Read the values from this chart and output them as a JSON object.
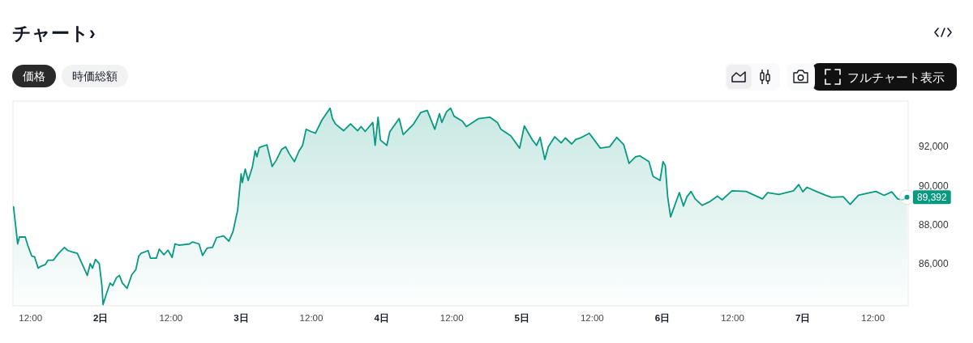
{
  "chart_data": {
    "type": "area",
    "title": "チャート›",
    "x": [
      "--12-01T09:06",
      "--12-01T09:48",
      "--12-01T10:06",
      "--12-01T11:06",
      "--12-01T11:30",
      "--12-01T12:12",
      "--12-01T12:42",
      "--12-01T13:18",
      "--12-01T13:48",
      "--12-01T14:30",
      "--12-01T15:00",
      "--12-01T15:54",
      "--12-01T16:48",
      "--12-01T17:48",
      "--12-01T18:24",
      "--12-01T19:06",
      "--12-01T20:00",
      "--12-01T21:00",
      "--12-01T21:42",
      "--12-01T22:12",
      "--12-01T22:36",
      "--12-01T23:06",
      "--12-01T23:45",
      "--12-02T00:12",
      "--12-02T00:24",
      "--12-02T00:54",
      "--12-02T01:36",
      "--12-02T02:03",
      "--12-02T02:42",
      "--12-02T03:12",
      "--12-02T03:42",
      "--12-02T04:30",
      "--12-02T05:18",
      "--12-02T06:00",
      "--12-02T06:30",
      "--12-02T06:54",
      "--12-02T08:06",
      "--12-02T08:30",
      "--12-02T09:30",
      "--12-02T10:00",
      "--12-02T10:48",
      "--12-02T11:30",
      "--12-02T12:12",
      "--12-02T12:42",
      "--12-02T13:24",
      "--12-02T15:12",
      "--12-02T15:42",
      "--12-02T16:48",
      "--12-02T17:24",
      "--12-02T18:12",
      "--12-02T19:06",
      "--12-02T19:48",
      "--12-02T21:00",
      "--12-02T21:54",
      "--12-02T22:36",
      "--12-02T23:24",
      "--12-03T00:00",
      "--12-03T00:12",
      "--12-03T00:42",
      "--12-03T01:12",
      "--12-03T01:54",
      "--12-03T02:24",
      "--12-03T02:42",
      "--12-03T03:06",
      "--12-03T04:24",
      "--12-03T05:18",
      "--12-03T06:00",
      "--12-03T06:54",
      "--12-03T07:36",
      "--12-03T08:12",
      "--12-03T09:06",
      "--12-03T09:54",
      "--12-03T10:30",
      "--12-03T11:06",
      "--12-03T11:54",
      "--12-03T12:42",
      "--12-03T13:48",
      "--12-03T15:12",
      "--12-03T15:36",
      "--12-03T16:06",
      "--12-03T17:30",
      "--12-03T18:42",
      "--12-03T19:54",
      "--12-03T20:30",
      "--12-03T21:12",
      "--12-03T22:30",
      "--12-03T22:54",
      "--12-03T23:24",
      "--12-03T23:48",
      "--12-04T00:54",
      "--12-04T01:24",
      "--12-04T03:00",
      "--12-04T03:42",
      "--12-04T05:30",
      "--12-04T06:42",
      "--12-04T07:48",
      "--12-04T09:06",
      "--12-04T09:54",
      "--12-04T10:18",
      "--12-04T11:06",
      "--12-04T11:48",
      "--12-04T12:24",
      "--12-04T13:48",
      "--12-04T14:30",
      "--12-04T16:36",
      "--12-04T18:30",
      "--12-04T19:48",
      "--12-04T20:24",
      "--12-04T22:06",
      "--12-04T23:36",
      "--12-05T00:24",
      "--12-05T01:48",
      "--12-05T02:30",
      "--12-05T03:06",
      "--12-05T03:54",
      "--12-05T04:30",
      "--12-05T05:36",
      "--12-05T06:42",
      "--12-05T07:24",
      "--12-05T08:30",
      "--12-05T09:12",
      "--12-05T10:12",
      "--12-05T11:30",
      "--12-05T13:24",
      "--12-05T15:00",
      "--12-05T16:12",
      "--12-05T17:24",
      "--12-05T18:18",
      "--12-05T19:24",
      "--12-05T20:06",
      "--12-05T21:42",
      "--12-05T22:24",
      "--12-05T23:36",
      "--12-06T00:06",
      "--12-06T00:30",
      "--12-06T00:54",
      "--12-06T01:24",
      "--12-06T01:54",
      "--12-06T02:54",
      "--12-06T03:36",
      "--12-06T04:12",
      "--12-06T04:54",
      "--12-06T05:36",
      "--12-06T06:48",
      "--12-06T08:00",
      "--12-06T09:24",
      "--12-06T10:12",
      "--12-06T11:54",
      "--12-06T14:18",
      "--12-06T17:06",
      "--12-06T18:00",
      "--12-06T19:54",
      "--12-06T22:24",
      "--12-06T23:18",
      "--12-07T00:00",
      "--12-07T00:42",
      "--12-07T02:18",
      "--12-07T03:54",
      "--12-07T04:54",
      "--12-07T06:54",
      "--12-07T08:06",
      "--12-07T09:30",
      "--12-07T11:30",
      "--12-07T12:30",
      "--12-07T13:54",
      "--12-07T15:12",
      "--12-07T16:12",
      "--12-07T17:06",
      "--12-07T17:48"
    ],
    "values": [
      88900,
      87010,
      87360,
      87360,
      86970,
      86390,
      86350,
      85770,
      85870,
      85950,
      86180,
      86180,
      86530,
      86830,
      86670,
      86600,
      86530,
      85870,
      85400,
      86000,
      85770,
      86220,
      86000,
      84880,
      83910,
      84400,
      85010,
      84880,
      85290,
      85400,
      85010,
      84740,
      85430,
      85700,
      86390,
      86530,
      86670,
      86280,
      86280,
      86740,
      86460,
      86690,
      86320,
      87010,
      86940,
      87010,
      87110,
      87010,
      86420,
      86800,
      86830,
      87330,
      87420,
      87150,
      87630,
      88730,
      90590,
      90140,
      90830,
      90250,
      90910,
      91760,
      91460,
      91930,
      92070,
      90960,
      91280,
      91830,
      91970,
      91620,
      91210,
      91760,
      92040,
      92860,
      92750,
      92660,
      93330,
      93940,
      93410,
      93140,
      92790,
      93140,
      92790,
      93000,
      92750,
      93210,
      92040,
      93480,
      92310,
      92040,
      92730,
      93410,
      92590,
      93140,
      93720,
      93830,
      92860,
      93660,
      93210,
      93760,
      93940,
      93530,
      93280,
      93000,
      93410,
      93480,
      93210,
      92860,
      92520,
      91900,
      93030,
      92310,
      92040,
      92450,
      91320,
      91970,
      92480,
      92170,
      92420,
      92110,
      92340,
      92450,
      92660,
      91900,
      91970,
      92450,
      92070,
      91120,
      91460,
      91510,
      91210,
      90460,
      90250,
      91210,
      91000,
      89420,
      88390,
      88800,
      89630,
      88940,
      89420,
      89690,
      89310,
      88980,
      89150,
      89450,
      89260,
      89720,
      89690,
      89310,
      89630,
      89530,
      89720,
      90040,
      89670,
      89900,
      89690,
      89490,
      89390,
      89420,
      89030,
      89490,
      89630,
      89690,
      89490,
      89670,
      89310,
      89260,
      89392
    ],
    "color": "#089981",
    "xlim": [
      "--12-01T09:00",
      "--12-07T18:00"
    ],
    "ylim": [
      83850,
      94300
    ],
    "xticks": [
      {
        "value": "--12-01T12:00",
        "label": "12:00"
      },
      {
        "value": "--12-02",
        "label": "2日"
      },
      {
        "value": "--12-02T12:00",
        "label": "12:00"
      },
      {
        "value": "--12-03",
        "label": "3日"
      },
      {
        "value": "--12-03T12:00",
        "label": "12:00"
      },
      {
        "value": "--12-04",
        "label": "4日"
      },
      {
        "value": "--12-04T12:00",
        "label": "12:00"
      },
      {
        "value": "--12-05",
        "label": "5日"
      },
      {
        "value": "--12-05T12:00",
        "label": "12:00"
      },
      {
        "value": "--12-06",
        "label": "6日"
      },
      {
        "value": "--12-06T12:00",
        "label": "12:00"
      },
      {
        "value": "--12-07",
        "label": "7日"
      },
      {
        "value": "--12-07T12:00",
        "label": "12:00"
      }
    ],
    "yticks": [
      {
        "value": 86000,
        "label": "86,000"
      },
      {
        "value": 88000,
        "label": "88,000"
      },
      {
        "value": 90000,
        "label": "90,000"
      },
      {
        "value": 92000,
        "label": "92,000"
      }
    ],
    "annotations": [
      "価格",
      "時価総額",
      "フルチャート表示",
      {
        "text": "89,392",
        "x": "--12-07T17:48",
        "y": 89392
      }
    ]
  }
}
